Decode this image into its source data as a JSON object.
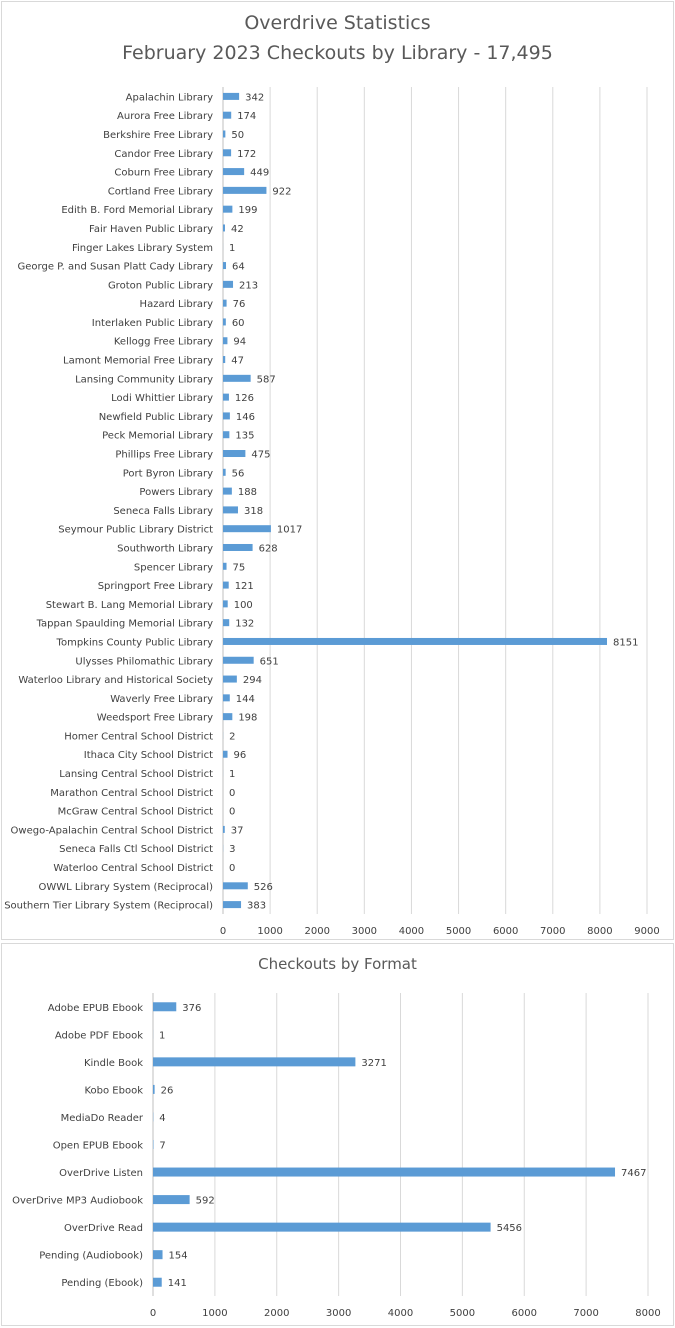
{
  "chart_data": [
    {
      "type": "bar",
      "orientation": "horizontal",
      "title": "Overdrive Statistics",
      "subtitle": "February 2023 Checkouts by Library - 17,495",
      "xlim": [
        0,
        9000
      ],
      "xticks": [
        0,
        1000,
        2000,
        3000,
        4000,
        5000,
        6000,
        7000,
        8000,
        9000
      ],
      "grid": true,
      "bar_color": "#5b9bd5",
      "categories": [
        "Apalachin Library",
        "Aurora Free Library",
        "Berkshire Free Library",
        "Candor Free Library",
        "Coburn Free Library",
        "Cortland Free Library",
        "Edith B. Ford Memorial Library",
        "Fair Haven Public Library",
        "Finger Lakes Library System",
        "George P. and Susan Platt Cady Library",
        "Groton Public Library",
        "Hazard Library",
        "Interlaken Public Library",
        "Kellogg Free Library",
        "Lamont Memorial Free Library",
        "Lansing Community Library",
        "Lodi Whittier Library",
        "Newfield Public Library",
        "Peck Memorial Library",
        "Phillips Free Library",
        "Port Byron Library",
        "Powers Library",
        "Seneca Falls Library",
        "Seymour Public Library District",
        "Southworth Library",
        "Spencer Library",
        "Springport Free Library",
        "Stewart B. Lang Memorial Library",
        "Tappan Spaulding Memorial Library",
        "Tompkins County Public Library",
        "Ulysses Philomathic Library",
        "Waterloo Library and Historical Society",
        "Waverly Free Library",
        "Weedsport Free Library",
        "Homer Central School District",
        "Ithaca City School District",
        "Lansing Central School District",
        "Marathon Central School District",
        "McGraw Central School District",
        "Owego-Apalachin Central School District",
        "Seneca Falls Ctl School District",
        "Waterloo Central School District",
        "OWWL Library System (Reciprocal)",
        "Southern Tier Library System (Reciprocal)"
      ],
      "values": [
        342,
        174,
        50,
        172,
        449,
        922,
        199,
        42,
        1,
        64,
        213,
        76,
        60,
        94,
        47,
        587,
        126,
        146,
        135,
        475,
        56,
        188,
        318,
        1017,
        628,
        75,
        121,
        100,
        132,
        8151,
        651,
        294,
        144,
        198,
        2,
        96,
        1,
        0,
        0,
        37,
        3,
        0,
        526,
        383
      ]
    },
    {
      "type": "bar",
      "orientation": "horizontal",
      "title": "Checkouts by Format",
      "xlim": [
        0,
        8000
      ],
      "xticks": [
        0,
        1000,
        2000,
        3000,
        4000,
        5000,
        6000,
        7000,
        8000
      ],
      "grid": true,
      "bar_color": "#5b9bd5",
      "categories": [
        "Adobe EPUB Ebook",
        "Adobe PDF Ebook",
        "Kindle Book",
        "Kobo Ebook",
        "MediaDo Reader",
        "Open EPUB Ebook",
        "OverDrive Listen",
        "OverDrive MP3 Audiobook",
        "OverDrive Read",
        "Pending (Audiobook)",
        "Pending (Ebook)"
      ],
      "values": [
        376,
        1,
        3271,
        26,
        4,
        7,
        7467,
        592,
        5456,
        154,
        141
      ]
    }
  ]
}
